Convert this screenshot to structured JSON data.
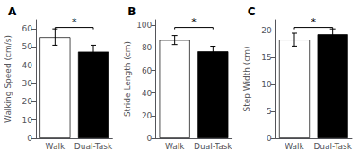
{
  "chart_data": [
    {
      "type": "bar",
      "title": "A",
      "ylabel": "Walking Speed (cm/s)",
      "categories": [
        "Walk",
        "Dual-Task"
      ],
      "values": [
        55.5,
        47.5
      ],
      "errors": [
        4.5,
        3.5
      ],
      "colors": [
        "white",
        "black"
      ],
      "ylim": [
        0,
        65
      ],
      "yticks": [
        0,
        10,
        20,
        30,
        40,
        50,
        60
      ],
      "annotation": "*",
      "grid": false
    },
    {
      "type": "bar",
      "title": "B",
      "ylabel": "Stride Length (cm)",
      "categories": [
        "Walk",
        "Dual-Task"
      ],
      "values": [
        87,
        77
      ],
      "errors": [
        4.0,
        4.5
      ],
      "colors": [
        "white",
        "black"
      ],
      "ylim": [
        0,
        105
      ],
      "yticks": [
        0,
        20,
        40,
        60,
        80,
        100
      ],
      "annotation": "*",
      "grid": false
    },
    {
      "type": "bar",
      "title": "C",
      "ylabel": "Step Width (cm)",
      "categories": [
        "Walk",
        "Dual-Task"
      ],
      "values": [
        18.3,
        19.3
      ],
      "errors": [
        1.2,
        1.0
      ],
      "colors": [
        "white",
        "black"
      ],
      "ylim": [
        0,
        22
      ],
      "yticks": [
        0,
        5,
        10,
        15,
        20
      ],
      "annotation": "*",
      "grid": false
    }
  ]
}
